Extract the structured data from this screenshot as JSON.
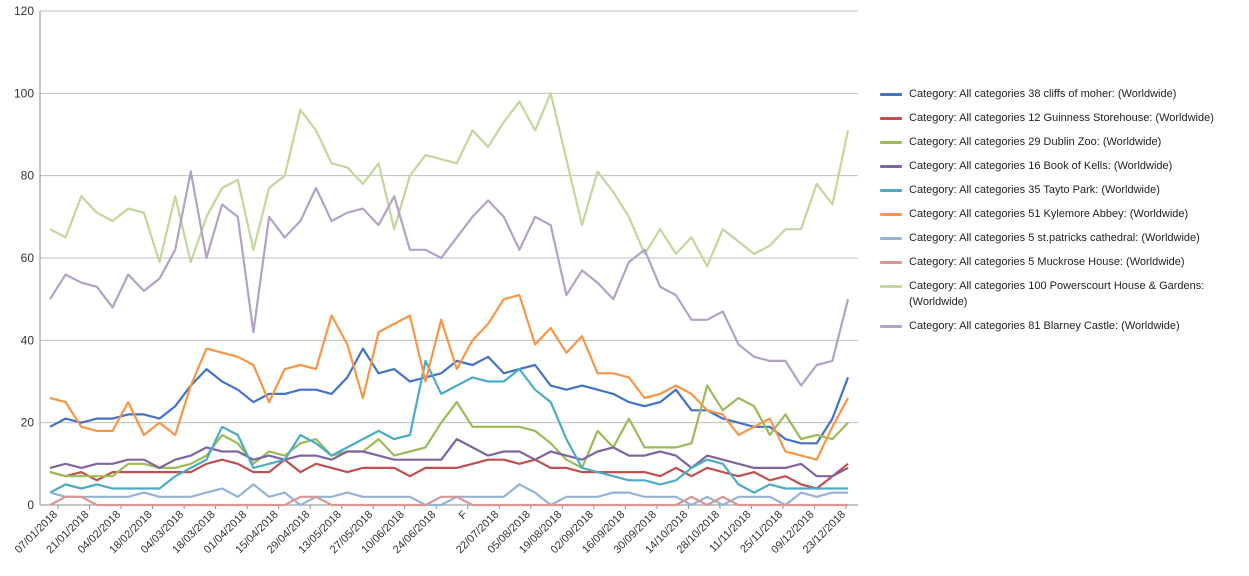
{
  "chart_data": {
    "type": "line",
    "title": "",
    "xlabel": "",
    "ylabel": "",
    "ylim": [
      0,
      120
    ],
    "yticks": [
      0,
      20,
      40,
      60,
      80,
      100,
      120
    ],
    "grid": "horizontal",
    "legend_position": "right",
    "x_tick_labels": [
      "07/01/2018",
      "21/01/2018",
      "04/02/2018",
      "18/02/2018",
      "04/03/2018",
      "18/03/2018",
      "01/04/2018",
      "15/04/2018",
      "29/04/2018",
      "13/05/2018",
      "27/05/2018",
      "10/06/2018",
      "24/06/2018",
      "F",
      "22/07/2018",
      "05/08/2018",
      "19/08/2018",
      "02/09/2018",
      "16/09/2018",
      "30/09/2018",
      "14/10/2018",
      "28/10/2018",
      "11/11/2018",
      "25/11/2018",
      "09/12/2018",
      "23/12/2018"
    ],
    "series": [
      {
        "name": "Category: All categories 38 cliffs of moher: (Worldwide)",
        "color": "#4472c4",
        "values": [
          19,
          21,
          20,
          21,
          21,
          22,
          22,
          21,
          24,
          29,
          33,
          30,
          28,
          25,
          27,
          27,
          28,
          28,
          27,
          31,
          38,
          32,
          33,
          30,
          31,
          32,
          35,
          34,
          36,
          32,
          33,
          34,
          29,
          28,
          29,
          28,
          27,
          25,
          24,
          25,
          28,
          23,
          23,
          21,
          20,
          19,
          19,
          16,
          15,
          15,
          21,
          31
        ]
      },
      {
        "name": "Category: All categories 12 Guinness Storehouse: (Worldwide)",
        "color": "#c0504d",
        "values": [
          8,
          7,
          8,
          6,
          8,
          8,
          8,
          8,
          8,
          8,
          10,
          11,
          10,
          8,
          8,
          11,
          8,
          10,
          9,
          8,
          9,
          9,
          9,
          7,
          9,
          9,
          9,
          10,
          11,
          11,
          10,
          11,
          9,
          9,
          8,
          8,
          8,
          8,
          8,
          7,
          9,
          7,
          9,
          8,
          7,
          8,
          6,
          7,
          5,
          4,
          7,
          10
        ]
      },
      {
        "name": "Category: All categories 29 Dublin Zoo: (Worldwide)",
        "color": "#9bbb59",
        "values": [
          8,
          7,
          7,
          7,
          7,
          10,
          10,
          9,
          9,
          10,
          12,
          17,
          15,
          10,
          13,
          12,
          15,
          16,
          12,
          13,
          13,
          16,
          12,
          13,
          14,
          20,
          25,
          19,
          19,
          19,
          19,
          18,
          15,
          11,
          9,
          18,
          14,
          21,
          14,
          14,
          14,
          15,
          29,
          23,
          26,
          24,
          17,
          22,
          16,
          17,
          16,
          20
        ]
      },
      {
        "name": "Category: All categories 16 Book of Kells: (Worldwide)",
        "color": "#8064a2",
        "values": [
          9,
          10,
          9,
          10,
          10,
          11,
          11,
          9,
          11,
          12,
          14,
          13,
          13,
          11,
          12,
          11,
          12,
          12,
          11,
          13,
          13,
          12,
          11,
          11,
          11,
          11,
          16,
          14,
          12,
          13,
          13,
          11,
          13,
          12,
          11,
          13,
          14,
          12,
          12,
          13,
          12,
          9,
          12,
          11,
          10,
          9,
          9,
          9,
          10,
          7,
          7,
          9
        ]
      },
      {
        "name": "Category: All categories 35 Tayto Park: (Worldwide)",
        "color": "#4bacc6",
        "values": [
          3,
          5,
          4,
          5,
          4,
          4,
          4,
          4,
          7,
          9,
          11,
          19,
          17,
          9,
          10,
          11,
          17,
          15,
          12,
          14,
          16,
          18,
          16,
          17,
          35,
          27,
          29,
          31,
          30,
          30,
          33,
          28,
          25,
          16,
          9,
          8,
          7,
          6,
          6,
          5,
          6,
          9,
          11,
          10,
          5,
          3,
          5,
          4,
          4,
          4,
          4,
          4
        ]
      },
      {
        "name": "Category: All categories 51 Kylemore Abbey: (Worldwide)",
        "color": "#f79646",
        "values": [
          26,
          25,
          19,
          18,
          18,
          25,
          17,
          20,
          17,
          29,
          38,
          37,
          36,
          34,
          25,
          33,
          34,
          33,
          46,
          39,
          26,
          42,
          44,
          46,
          30,
          45,
          33,
          40,
          44,
          50,
          51,
          39,
          43,
          37,
          41,
          32,
          32,
          31,
          26,
          27,
          29,
          27,
          23,
          22,
          17,
          19,
          21,
          13,
          12,
          11,
          19,
          26
        ]
      },
      {
        "name": "Category: All categories 5 st.patricks cathedral: (Worldwide)",
        "color": "#95b3d7",
        "values": [
          3,
          2,
          2,
          2,
          2,
          2,
          3,
          2,
          2,
          2,
          3,
          4,
          2,
          5,
          2,
          3,
          0,
          2,
          2,
          3,
          2,
          2,
          2,
          2,
          0,
          0,
          2,
          2,
          2,
          2,
          5,
          3,
          0,
          2,
          2,
          2,
          3,
          3,
          2,
          2,
          2,
          0,
          2,
          0,
          2,
          2,
          2,
          0,
          3,
          2,
          3,
          3
        ]
      },
      {
        "name": "Category: All categories 5 Muckrose House: (Worldwide)",
        "color": "#d99694",
        "values": [
          0,
          2,
          2,
          0,
          0,
          0,
          0,
          0,
          0,
          0,
          0,
          0,
          0,
          0,
          0,
          0,
          2,
          2,
          0,
          0,
          0,
          0,
          0,
          0,
          0,
          2,
          2,
          0,
          0,
          0,
          0,
          0,
          0,
          0,
          0,
          0,
          0,
          0,
          0,
          0,
          0,
          2,
          0,
          2,
          0,
          0,
          0,
          0,
          0,
          0,
          0,
          0
        ]
      },
      {
        "name": "Category: All categories 100 Powerscourt House & Gardens: (Worldwide)",
        "color": "#c3d69b",
        "values": [
          67,
          65,
          75,
          71,
          69,
          72,
          71,
          59,
          75,
          59,
          70,
          77,
          79,
          62,
          77,
          80,
          96,
          91,
          83,
          82,
          78,
          83,
          67,
          80,
          85,
          84,
          83,
          91,
          87,
          93,
          98,
          91,
          100,
          84,
          68,
          81,
          76,
          70,
          61,
          67,
          61,
          65,
          58,
          67,
          64,
          61,
          63,
          67,
          67,
          78,
          73,
          91
        ]
      },
      {
        "name": "Category: All categories 81 Blarney Castle: (Worldwide)",
        "color": "#b3a2c7",
        "values": [
          50,
          56,
          54,
          53,
          48,
          56,
          52,
          55,
          62,
          81,
          60,
          73,
          70,
          42,
          70,
          65,
          69,
          77,
          69,
          71,
          72,
          68,
          75,
          62,
          62,
          60,
          65,
          70,
          74,
          70,
          62,
          70,
          68,
          51,
          57,
          54,
          50,
          59,
          62,
          53,
          51,
          45,
          45,
          47,
          39,
          36,
          35,
          35,
          29,
          34,
          35,
          50
        ]
      }
    ]
  }
}
